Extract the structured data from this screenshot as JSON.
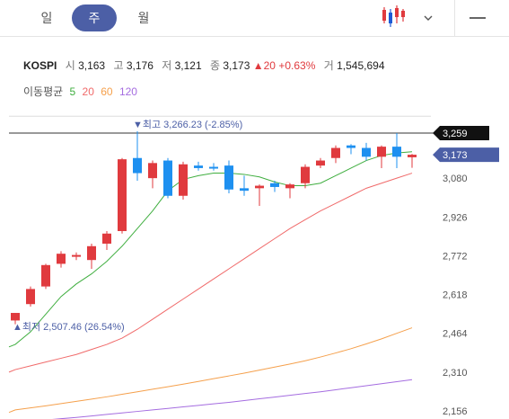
{
  "tabs": [
    {
      "label": "일",
      "active": false
    },
    {
      "label": "주",
      "active": true
    },
    {
      "label": "월",
      "active": false
    }
  ],
  "toolbar": {
    "chart_type_icon": "candlestick-icon",
    "dropdown_icon": "chevron-down-icon",
    "menu_icon": "minus-icon"
  },
  "info": {
    "symbol": "KOSPI",
    "open_label": "시",
    "open": "3,163",
    "high_label": "고",
    "high": "3,176",
    "low_label": "저",
    "low": "3,121",
    "close_label": "종",
    "close": "3,173",
    "change": "▲20",
    "change_pct": "+0.63%",
    "volume_label": "거",
    "volume": "1,545,694"
  },
  "ma": {
    "label": "이동평균",
    "periods": [
      "5",
      "20",
      "60",
      "120"
    ],
    "colors": [
      "#3fae3f",
      "#f06a6a",
      "#f5a04c",
      "#a56de0"
    ]
  },
  "colors": {
    "up": "#e03a3e",
    "down": "#1e90f0",
    "accent": "#4c5fa6"
  },
  "annotations": {
    "high": "▼최고 3,266.23 (-2.85%)",
    "low": "▲최저 2,507.46 (26.54%)",
    "ref_price": "3,259",
    "current_price": "3,173"
  },
  "chart_data": {
    "type": "candlestick",
    "y_ticks": [
      "3,080",
      "2,926",
      "2,772",
      "2,618",
      "2,464",
      "2,310",
      "2,156"
    ],
    "ylim": [
      2156,
      3340
    ],
    "reference_line": 3259,
    "current_price": 3173,
    "candles": [
      {
        "o": 2515,
        "h": 2545,
        "l": 2500,
        "c": 2545
      },
      {
        "o": 2580,
        "h": 2650,
        "l": 2570,
        "c": 2640
      },
      {
        "o": 2650,
        "h": 2740,
        "l": 2640,
        "c": 2735
      },
      {
        "o": 2740,
        "h": 2790,
        "l": 2725,
        "c": 2780
      },
      {
        "o": 2770,
        "h": 2785,
        "l": 2755,
        "c": 2775
      },
      {
        "o": 2755,
        "h": 2820,
        "l": 2720,
        "c": 2810
      },
      {
        "o": 2820,
        "h": 2870,
        "l": 2795,
        "c": 2860
      },
      {
        "o": 2870,
        "h": 3160,
        "l": 2860,
        "c": 3155
      },
      {
        "o": 3160,
        "h": 3266,
        "l": 3070,
        "c": 3100
      },
      {
        "o": 3080,
        "h": 3150,
        "l": 3040,
        "c": 3140
      },
      {
        "o": 3150,
        "h": 3160,
        "l": 3000,
        "c": 3010
      },
      {
        "o": 3010,
        "h": 3145,
        "l": 2995,
        "c": 3135
      },
      {
        "o": 3130,
        "h": 3145,
        "l": 3110,
        "c": 3120
      },
      {
        "o": 3125,
        "h": 3140,
        "l": 3110,
        "c": 3120
      },
      {
        "o": 3130,
        "h": 3150,
        "l": 3020,
        "c": 3035
      },
      {
        "o": 3040,
        "h": 3090,
        "l": 3010,
        "c": 3030
      },
      {
        "o": 3040,
        "h": 3055,
        "l": 2970,
        "c": 3050
      },
      {
        "o": 3060,
        "h": 3070,
        "l": 3025,
        "c": 3045
      },
      {
        "o": 3040,
        "h": 3060,
        "l": 3000,
        "c": 3055
      },
      {
        "o": 3060,
        "h": 3135,
        "l": 3040,
        "c": 3125
      },
      {
        "o": 3130,
        "h": 3160,
        "l": 3120,
        "c": 3150
      },
      {
        "o": 3160,
        "h": 3210,
        "l": 3140,
        "c": 3200
      },
      {
        "o": 3210,
        "h": 3215,
        "l": 3175,
        "c": 3200
      },
      {
        "o": 3200,
        "h": 3220,
        "l": 3150,
        "c": 3165
      },
      {
        "o": 3165,
        "h": 3210,
        "l": 3120,
        "c": 3205
      },
      {
        "o": 3205,
        "h": 3259,
        "l": 3120,
        "c": 3165
      },
      {
        "o": 3163,
        "h": 3176,
        "l": 3121,
        "c": 3173
      }
    ],
    "ma5": [
      2420,
      2470,
      2540,
      2610,
      2660,
      2700,
      2750,
      2810,
      2880,
      2950,
      3030,
      3075,
      3090,
      3100,
      3100,
      3095,
      3085,
      3065,
      3050,
      3050,
      3060,
      3090,
      3120,
      3150,
      3170,
      3180,
      3185
    ],
    "ma20": [
      2320,
      2335,
      2350,
      2365,
      2380,
      2400,
      2420,
      2445,
      2480,
      2520,
      2560,
      2600,
      2640,
      2680,
      2720,
      2760,
      2800,
      2840,
      2880,
      2915,
      2950,
      2980,
      3010,
      3040,
      3060,
      3080,
      3100
    ],
    "ma60": [
      2160,
      2168,
      2176,
      2185,
      2194,
      2203,
      2212,
      2222,
      2232,
      2242,
      2252,
      2262,
      2273,
      2284,
      2295,
      2306,
      2318,
      2330,
      2342,
      2355,
      2370,
      2386,
      2403,
      2422,
      2442,
      2464,
      2486
    ],
    "ma120": [
      2110,
      2115,
      2120,
      2125,
      2130,
      2136,
      2142,
      2148,
      2154,
      2160,
      2166,
      2172,
      2178,
      2184,
      2190,
      2197,
      2204,
      2211,
      2218,
      2225,
      2232,
      2240,
      2248,
      2256,
      2264,
      2272,
      2280
    ]
  }
}
